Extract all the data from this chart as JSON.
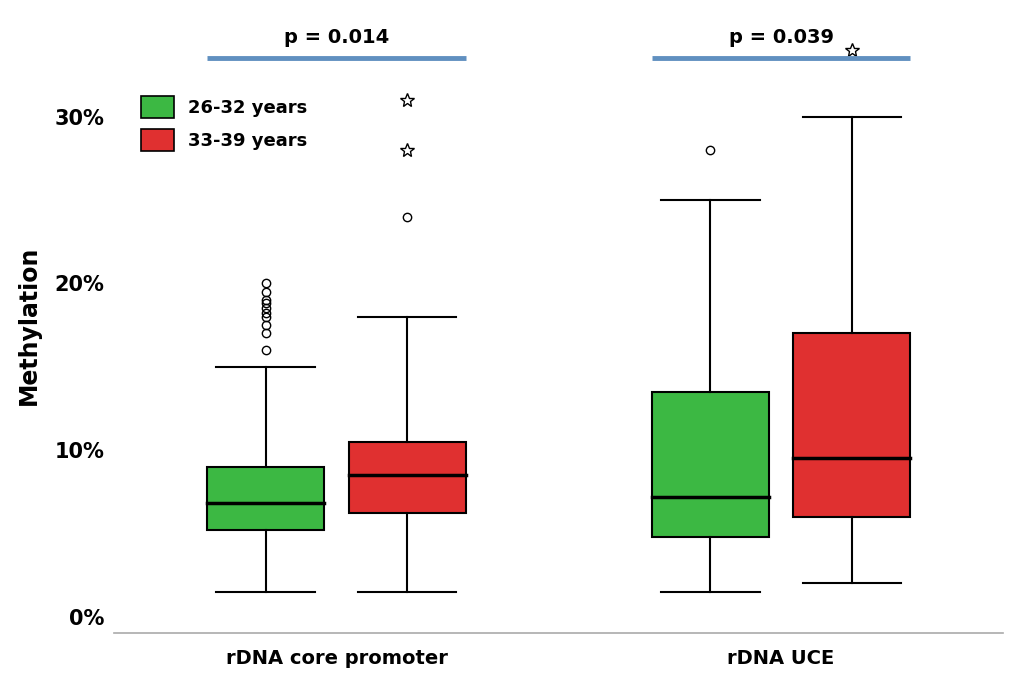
{
  "younger_color": "#3cb843",
  "older_color": "#e03030",
  "younger_label": "26-32 years",
  "older_label": "33-39 years",
  "ylabel": "Methylation",
  "yticks": [
    0,
    10,
    20,
    30
  ],
  "ytick_labels": [
    "0%",
    "10%",
    "20%",
    "30%"
  ],
  "ylim": [
    -1,
    36
  ],
  "background_color": "#ffffff",
  "p_values": [
    "p = 0.014",
    "p = 0.039"
  ],
  "bracket_color": "#6090c0",
  "core_promoter_younger": {
    "median": 6.8,
    "q1": 5.2,
    "q3": 9.0,
    "whislo": 1.5,
    "whishi": 15.0,
    "fliers_mild": [
      16.0,
      17.0,
      17.5,
      18.0,
      18.2,
      18.5,
      18.8,
      19.0,
      19.5,
      20.0
    ],
    "fliers_extreme": []
  },
  "core_promoter_older": {
    "median": 8.5,
    "q1": 6.2,
    "q3": 10.5,
    "whislo": 1.5,
    "whishi": 18.0,
    "fliers_mild": [
      24.0
    ],
    "fliers_extreme": [
      28.0,
      31.0
    ]
  },
  "uce_younger": {
    "median": 7.2,
    "q1": 4.8,
    "q3": 13.5,
    "whislo": 1.5,
    "whishi": 25.0,
    "fliers_mild": [
      28.0
    ],
    "fliers_extreme": []
  },
  "uce_older": {
    "median": 9.5,
    "q1": 6.0,
    "q3": 17.0,
    "whislo": 2.0,
    "whishi": 30.0,
    "fliers_mild": [],
    "fliers_extreme": [
      34.0
    ]
  }
}
